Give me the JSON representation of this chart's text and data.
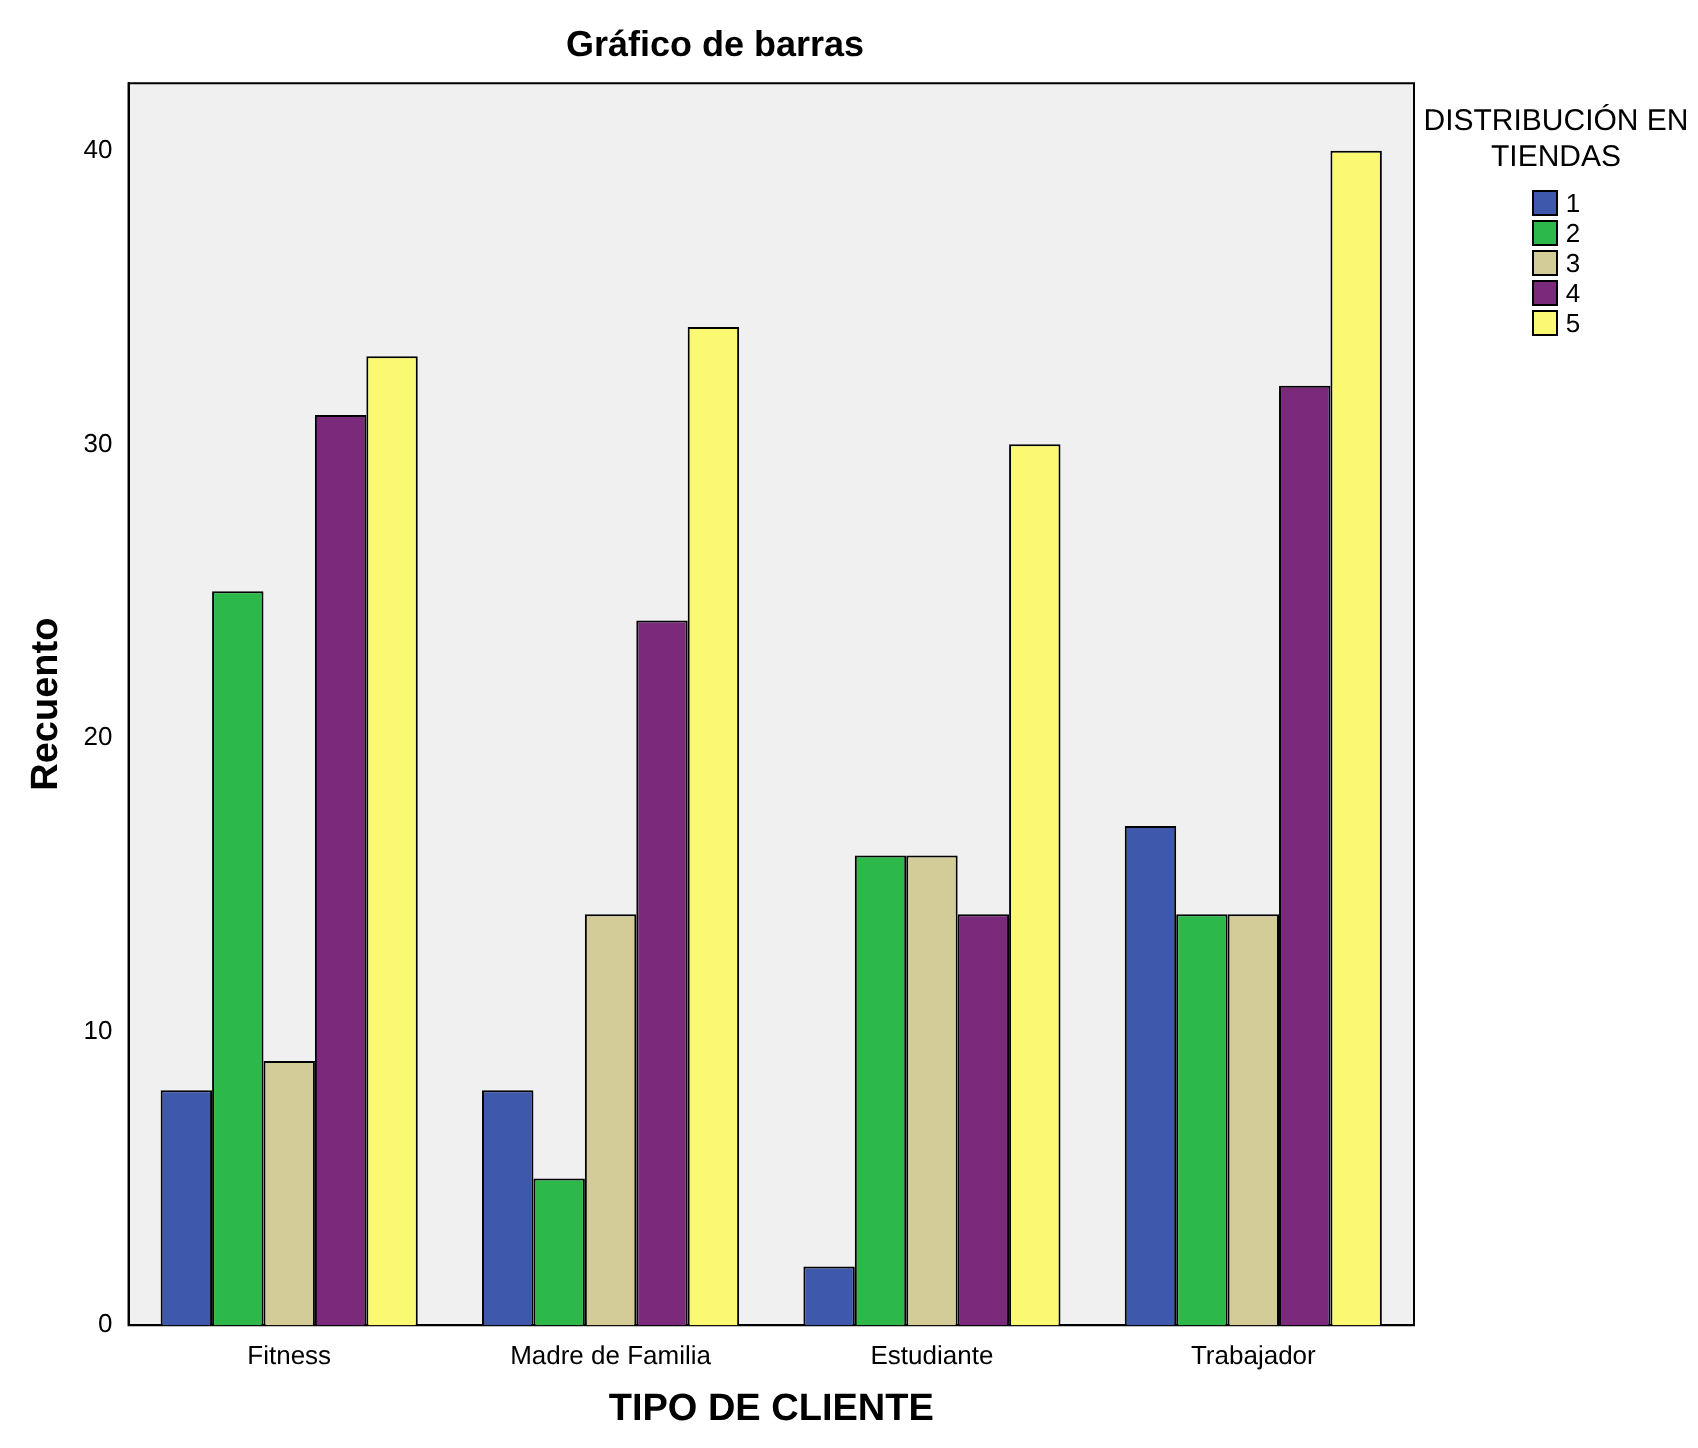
{
  "chart_data": {
    "type": "bar",
    "title": "Gráfico de barras",
    "xlabel": "TIPO DE CLIENTE",
    "ylabel": "Recuento",
    "legend_title": "DISTRIBUCIÓN EN TIENDAS",
    "legend": "top right",
    "categories": [
      "Fitness",
      "Madre de Familia",
      "Estudiante",
      "Trabajador"
    ],
    "series": [
      {
        "name": "1",
        "color": "#3e58ac",
        "values": [
          8,
          8,
          2,
          17
        ]
      },
      {
        "name": "2",
        "color": "#2db84a",
        "values": [
          25,
          5,
          16,
          14
        ]
      },
      {
        "name": "3",
        "color": "#d4cc98",
        "values": [
          9,
          14,
          16,
          14
        ]
      },
      {
        "name": "4",
        "color": "#7b2a7b",
        "values": [
          31,
          24,
          14,
          32
        ]
      },
      {
        "name": "5",
        "color": "#fbf971",
        "values": [
          33,
          34,
          30,
          40
        ]
      }
    ],
    "ylim": [
      0,
      42.3
    ],
    "yticks": [
      0,
      10,
      20,
      30,
      40
    ],
    "grid": false
  }
}
